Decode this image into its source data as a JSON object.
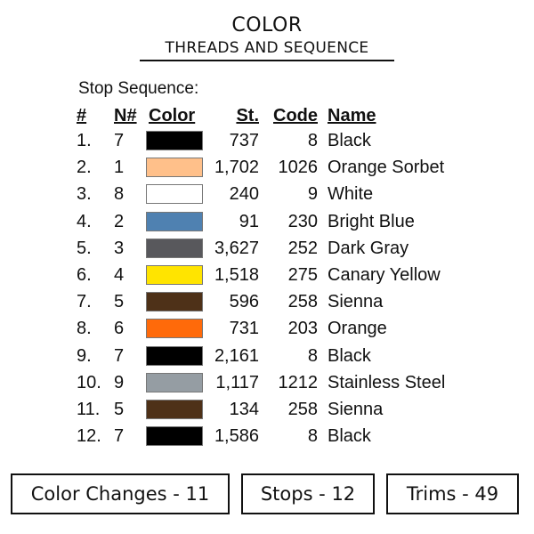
{
  "title": "COLOR",
  "subtitle": "THREADS AND SEQUENCE",
  "stop_sequence_label": "Stop Sequence:",
  "headers": {
    "num": "#",
    "n": "N#",
    "color": "Color",
    "st": "St.",
    "code": "Code",
    "name": "Name"
  },
  "rows": [
    {
      "num": "1.",
      "n": "7",
      "swatch": "#000000",
      "st": "737",
      "code": "8",
      "name": "Black"
    },
    {
      "num": "2.",
      "n": "1",
      "swatch": "#FFC08A",
      "st": "1,702",
      "code": "1026",
      "name": "Orange Sorbet"
    },
    {
      "num": "3.",
      "n": "8",
      "swatch": "#FFFFFF",
      "st": "240",
      "code": "9",
      "name": "White"
    },
    {
      "num": "4.",
      "n": "2",
      "swatch": "#4F81B1",
      "st": "91",
      "code": "230",
      "name": "Bright Blue"
    },
    {
      "num": "5.",
      "n": "3",
      "swatch": "#58585C",
      "st": "3,627",
      "code": "252",
      "name": "Dark Gray"
    },
    {
      "num": "6.",
      "n": "4",
      "swatch": "#FFE400",
      "st": "1,518",
      "code": "275",
      "name": "Canary Yellow"
    },
    {
      "num": "7.",
      "n": "5",
      "swatch": "#4E3118",
      "st": "596",
      "code": "258",
      "name": "Sienna"
    },
    {
      "num": "8.",
      "n": "6",
      "swatch": "#FF6A0A",
      "st": "731",
      "code": "203",
      "name": "Orange"
    },
    {
      "num": "9.",
      "n": "7",
      "swatch": "#000000",
      "st": "2,161",
      "code": "8",
      "name": "Black"
    },
    {
      "num": "10.",
      "n": "9",
      "swatch": "#959DA3",
      "st": "1,117",
      "code": "1212",
      "name": "Stainless Steel"
    },
    {
      "num": "11.",
      "n": "5",
      "swatch": "#4E3118",
      "st": "134",
      "code": "258",
      "name": "Sienna"
    },
    {
      "num": "12.",
      "n": "7",
      "swatch": "#000000",
      "st": "1,586",
      "code": "8",
      "name": "Black"
    }
  ],
  "summary": {
    "color_changes": "Color Changes - 11",
    "stops": "Stops - 12",
    "trims": "Trims - 49"
  }
}
